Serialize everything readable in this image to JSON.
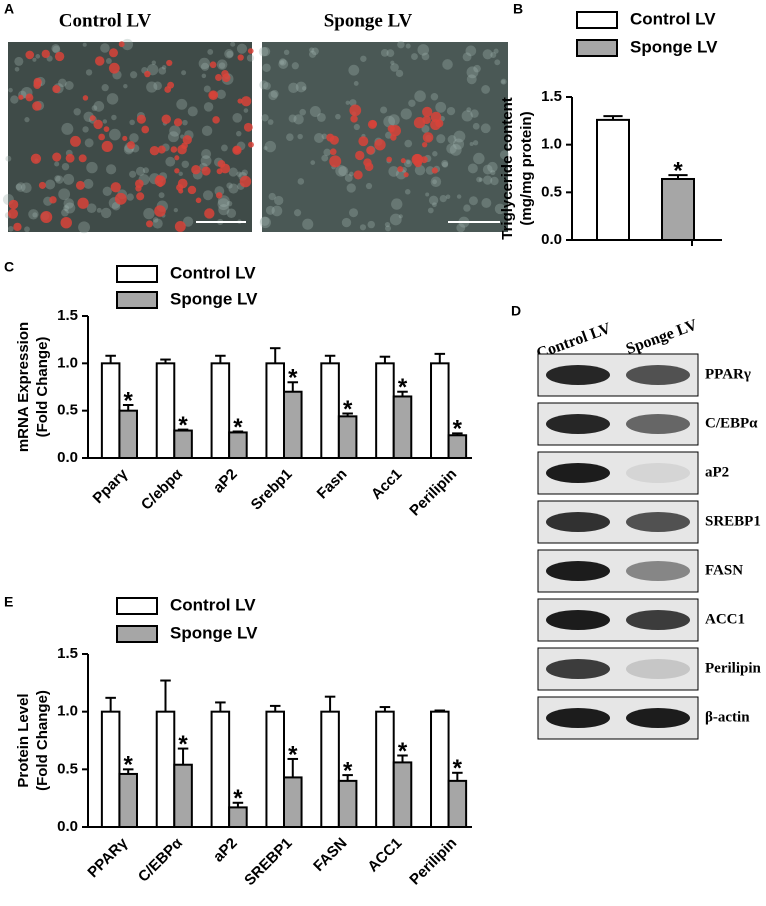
{
  "panel_labels": [
    "A",
    "B",
    "C",
    "D",
    "E"
  ],
  "images": [
    "Control LV",
    "Sponge LV"
  ],
  "blot": {
    "columns": [
      "Control LV",
      "Sponge LV"
    ],
    "rows": [
      "PPARγ",
      "C/EBPα",
      "aP2",
      "SREBP1",
      "FASN",
      "ACC1",
      "Perilipin",
      "β-actin"
    ]
  },
  "chart_data": [
    {
      "type": "bar",
      "ylabel": [
        "Triglyceride content",
        "(mg/mg protein)"
      ],
      "categories": [
        null
      ],
      "series": [
        {
          "name": "Control LV",
          "color": "#ffffff",
          "values": [
            1.26
          ],
          "errors": [
            0.04
          ]
        },
        {
          "name": "Sponge LV",
          "color": "#a6a6a6",
          "values": [
            0.64
          ],
          "errors": [
            0.04
          ],
          "significance": "*"
        }
      ],
      "ylim": [
        0,
        1.5
      ],
      "yticks": [
        {
          "value": 0,
          "label": "0.0"
        },
        0.5,
        {
          "value": 1,
          "label": "1.0"
        },
        1.5
      ]
    },
    {
      "type": "bar",
      "ylabel": [
        "mRNA Expression",
        "(Fold Change)"
      ],
      "categories": [
        "Pparγ",
        "C/ebpα",
        "aP2",
        "Srebp1",
        "Fasn",
        "Acc1",
        "Perilipin"
      ],
      "series": [
        {
          "name": "Control LV",
          "color": "#ffffff",
          "values": [
            1.0,
            1.0,
            1.0,
            1.0,
            1.0,
            1.0,
            1.0
          ],
          "errors": [
            0.08,
            0.04,
            0.08,
            0.16,
            0.08,
            0.07,
            0.1
          ]
        },
        {
          "name": "Sponge LV",
          "color": "#a6a6a6",
          "values": [
            0.5,
            0.29,
            0.27,
            0.7,
            0.44,
            0.65,
            0.24
          ],
          "errors": [
            0.06,
            0.01,
            0.01,
            0.1,
            0.03,
            0.05,
            0.02
          ],
          "significance": "*"
        }
      ],
      "ylim": [
        0,
        1.5
      ],
      "yticks": [
        {
          "value": 0,
          "label": "0.0"
        },
        0.5,
        {
          "value": 1,
          "label": "1.0"
        },
        1.5
      ]
    },
    {
      "type": "bar",
      "ylabel": [
        "Protein Level",
        "(Fold Change)"
      ],
      "categories": [
        "PPARγ",
        "C/EBPα",
        "aP2",
        "SREBP1",
        "FASN",
        "ACC1",
        "Perilipin"
      ],
      "series": [
        {
          "name": "Control LV",
          "color": "#ffffff",
          "values": [
            1.0,
            1.0,
            1.0,
            1.0,
            1.0,
            1.0,
            1.0
          ],
          "errors": [
            0.12,
            0.27,
            0.08,
            0.05,
            0.13,
            0.04,
            0.01
          ]
        },
        {
          "name": "Sponge LV",
          "color": "#a6a6a6",
          "values": [
            0.46,
            0.54,
            0.17,
            0.43,
            0.4,
            0.56,
            0.4
          ],
          "errors": [
            0.04,
            0.14,
            0.04,
            0.16,
            0.05,
            0.06,
            0.07
          ],
          "significance": "*"
        }
      ],
      "ylim": [
        0,
        1.5
      ],
      "yticks": [
        {
          "value": 0,
          "label": "0.0"
        },
        0.5,
        {
          "value": 1,
          "label": "1.0"
        },
        1.5
      ]
    }
  ]
}
